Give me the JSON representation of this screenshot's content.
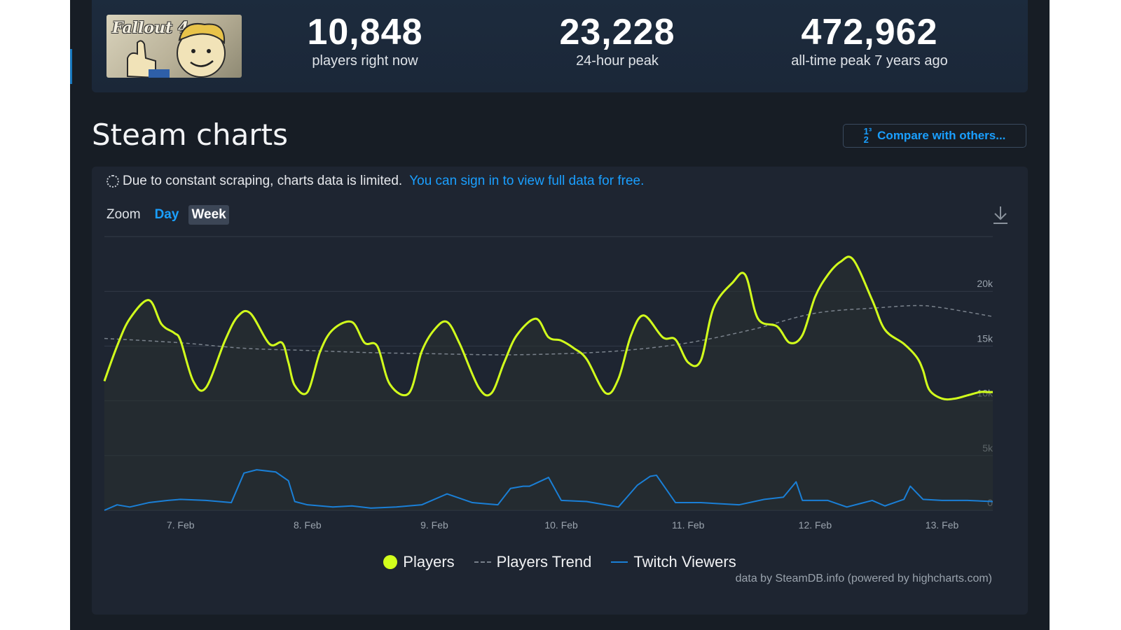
{
  "header": {
    "game_logo_text": "Fallout 4",
    "stats": [
      {
        "value": "10,848",
        "label": "players right now"
      },
      {
        "value": "23,228",
        "label": "24-hour peak"
      },
      {
        "value": "472,962",
        "label": "all-time peak 7 years ago"
      }
    ]
  },
  "section": {
    "title": "Steam charts",
    "compare_label": "Compare with others..."
  },
  "notice": {
    "text": "Due to constant scraping, charts data is limited.",
    "link_text": "You can sign in to view full data for free."
  },
  "zoom": {
    "label": "Zoom",
    "options": [
      "Day",
      "Week"
    ],
    "selected": "Week"
  },
  "legend": {
    "players": "Players",
    "trend": "Players Trend",
    "twitch": "Twitch Viewers"
  },
  "credits": "data by SteamDB.info (powered by highcharts.com)",
  "colors": {
    "players": "#d2ff1c",
    "trend": "#7a828c",
    "twitch": "#1a7fd6",
    "accent": "#1a9fff"
  },
  "chart_data": {
    "type": "line",
    "x_ticks": [
      "7. Feb",
      "8. Feb",
      "9. Feb",
      "10. Feb",
      "11. Feb",
      "12. Feb",
      "13. Feb"
    ],
    "y_ticks": [
      "0",
      "5k",
      "10k",
      "15k",
      "20k"
    ],
    "ylim": [
      0,
      25000
    ],
    "x_range_days": [
      6.4,
      13.4
    ],
    "grid": true,
    "legend_position": "bottom",
    "series": [
      {
        "name": "Players",
        "x": [
          6.4,
          6.5,
          6.6,
          6.75,
          6.85,
          6.95,
          7.0,
          7.1,
          7.2,
          7.35,
          7.45,
          7.55,
          7.7,
          7.8,
          7.85,
          7.9,
          8.0,
          8.1,
          8.2,
          8.35,
          8.45,
          8.55,
          8.65,
          8.8,
          8.9,
          9.0,
          9.1,
          9.2,
          9.35,
          9.45,
          9.55,
          9.65,
          9.8,
          9.9,
          10.0,
          10.1,
          10.2,
          10.35,
          10.45,
          10.55,
          10.65,
          10.8,
          10.9,
          11.0,
          11.1,
          11.2,
          11.35,
          11.45,
          11.55,
          11.7,
          11.8,
          11.9,
          12.0,
          12.1,
          12.2,
          12.3,
          12.45,
          12.55,
          12.7,
          12.8,
          12.85,
          12.9,
          13.0,
          13.1,
          13.2,
          13.3,
          13.35,
          13.4
        ],
        "y": [
          11800,
          15000,
          17500,
          19200,
          17000,
          16200,
          15500,
          11800,
          11200,
          15500,
          17700,
          18000,
          15200,
          15300,
          13500,
          11400,
          10800,
          14500,
          16500,
          17200,
          15300,
          15000,
          11500,
          10700,
          14500,
          16500,
          17200,
          15200,
          11200,
          10700,
          13500,
          16000,
          17500,
          15800,
          15500,
          14800,
          13800,
          10700,
          12000,
          16000,
          17800,
          15800,
          15600,
          13500,
          13700,
          18500,
          20800,
          21500,
          17500,
          16800,
          15300,
          16000,
          19500,
          21500,
          22700,
          22900,
          19200,
          16500,
          15200,
          14000,
          12800,
          11000,
          10200,
          10200,
          10500,
          10800,
          10800,
          10800
        ]
      },
      {
        "name": "Players Trend",
        "x": [
          6.4,
          7.0,
          7.5,
          8.0,
          8.5,
          9.0,
          9.5,
          10.0,
          10.5,
          11.0,
          11.5,
          12.0,
          12.5,
          12.8,
          13.0,
          13.4
        ],
        "y": [
          15700,
          15300,
          14800,
          14600,
          14400,
          14300,
          14200,
          14300,
          14600,
          15300,
          16500,
          18000,
          18500,
          18700,
          18500,
          17700
        ]
      },
      {
        "name": "Twitch Viewers",
        "x": [
          6.4,
          6.5,
          6.6,
          6.75,
          6.9,
          7.0,
          7.2,
          7.4,
          7.5,
          7.6,
          7.75,
          7.85,
          7.9,
          8.0,
          8.2,
          8.35,
          8.5,
          8.7,
          8.9,
          9.1,
          9.3,
          9.4,
          9.5,
          9.6,
          9.7,
          9.75,
          9.9,
          10.0,
          10.2,
          10.45,
          10.6,
          10.7,
          10.75,
          10.9,
          11.1,
          11.4,
          11.6,
          11.75,
          11.85,
          11.9,
          12.1,
          12.25,
          12.35,
          12.45,
          12.55,
          12.7,
          12.75,
          12.85,
          13.0,
          13.2,
          13.4
        ],
        "y": [
          0,
          500,
          300,
          700,
          900,
          1000,
          900,
          700,
          3400,
          3700,
          3500,
          2700,
          800,
          500,
          300,
          400,
          200,
          300,
          500,
          1500,
          700,
          600,
          500,
          2000,
          2200,
          2200,
          3000,
          900,
          800,
          300,
          2300,
          3100,
          3200,
          700,
          700,
          500,
          1000,
          1200,
          2600,
          900,
          900,
          300,
          600,
          900,
          400,
          1000,
          2200,
          1000,
          900,
          900,
          800
        ]
      }
    ]
  }
}
